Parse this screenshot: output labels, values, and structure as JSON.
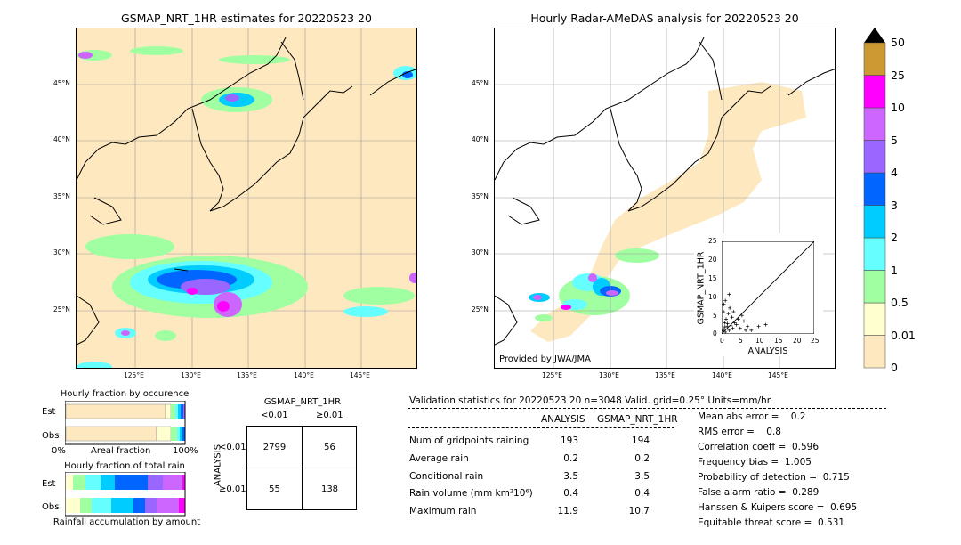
{
  "left_map": {
    "title": "GSMAP_NRT_1HR estimates for 20220523 20",
    "lat_labels": [
      "45°N",
      "40°N",
      "35°N",
      "30°N",
      "25°N"
    ],
    "lon_labels": [
      "125°E",
      "130°E",
      "135°E",
      "140°E",
      "145°E"
    ]
  },
  "right_map": {
    "title": "Hourly Radar-AMeDAS analysis for 20220523 20",
    "lat_labels": [
      "45°N",
      "40°N",
      "35°N",
      "30°N",
      "25°N"
    ],
    "lon_labels": [
      "125°E",
      "130°E",
      "135°E",
      "140°E",
      "145°E"
    ],
    "credit": "Provided by JWA/JMA"
  },
  "scatter_inset": {
    "ylabel": "GSMAP_NRT_1HR",
    "xlabel": "ANALYSIS",
    "ticks": [
      "0",
      "5",
      "10",
      "15",
      "20",
      "25"
    ]
  },
  "colorbar": {
    "labels": [
      "0",
      "0.01",
      "0.5",
      "1",
      "2",
      "3",
      "4",
      "5",
      "10",
      "25",
      "50"
    ],
    "colors": [
      "#fee8c0",
      "#ffffd0",
      "#a0ffa0",
      "#66ffff",
      "#00ccff",
      "#0066ff",
      "#9966ff",
      "#cc66ff",
      "#ff00ff",
      "#cc9933"
    ]
  },
  "occurrence_chart": {
    "title": "Hourly fraction by occurence",
    "rows": [
      "Est",
      "Obs"
    ],
    "axis_left": "0%",
    "axis_mid": "Areal fraction",
    "axis_right": "100%"
  },
  "total_rain_chart": {
    "title": "Hourly fraction of total rain",
    "rows": [
      "Est",
      "Obs"
    ],
    "footer": "Rainfall accumulation by amount"
  },
  "contingency": {
    "col_header": "GSMAP_NRT_1HR",
    "col_lt": "<0.01",
    "col_ge": "≥0.01",
    "row_header": "ANALYSIS",
    "row_lt": "<0.01",
    "row_ge": "≥0.01",
    "cells": [
      "2799",
      "56",
      "55",
      "138"
    ]
  },
  "validation": {
    "header": "Validation statistics for 20220523 20  n=3048 Valid. grid=0.25° Units=mm/hr.",
    "col_analysis": "ANALYSIS",
    "col_gsmap": "GSMAP_NRT_1HR",
    "rows": [
      {
        "label": "Num of gridpoints raining",
        "analysis": "193",
        "gsmap": "194"
      },
      {
        "label": "Average rain",
        "analysis": "0.2",
        "gsmap": "0.2"
      },
      {
        "label": "Conditional rain",
        "analysis": "3.5",
        "gsmap": "3.5"
      },
      {
        "label": "Rain volume (mm km²10⁶)",
        "analysis": "0.4",
        "gsmap": "0.4"
      },
      {
        "label": "Maximum rain",
        "analysis": "11.9",
        "gsmap": "10.7"
      }
    ],
    "scores": [
      "Mean abs error =    0.2",
      "RMS error =    0.8",
      "Correlation coeff =  0.596",
      "Frequency bias =  1.005",
      "Probability of detection =  0.715",
      "False alarm ratio =  0.289",
      "Hanssen & Kuipers score =  0.695",
      "Equitable threat score =  0.531"
    ]
  },
  "chart_data": {
    "type": "scatter",
    "xlabel": "ANALYSIS",
    "ylabel": "GSMAP_NRT_1HR",
    "xlim": [
      0,
      25
    ],
    "ylim": [
      0,
      25
    ],
    "points": [
      [
        0.5,
        1.2
      ],
      [
        1,
        0.5
      ],
      [
        1.5,
        2
      ],
      [
        2,
        1
      ],
      [
        0.8,
        3
      ],
      [
        2.5,
        2.2
      ],
      [
        3,
        1.5
      ],
      [
        1.2,
        4
      ],
      [
        0.5,
        6
      ],
      [
        1.8,
        5.5
      ],
      [
        2.2,
        7
      ],
      [
        3.5,
        3
      ],
      [
        4,
        2.5
      ],
      [
        5,
        1.5
      ],
      [
        6,
        3.5
      ],
      [
        7,
        2
      ],
      [
        8,
        1
      ],
      [
        11.9,
        2.5
      ],
      [
        10,
        2
      ],
      [
        1,
        9
      ],
      [
        0.3,
        0.8
      ],
      [
        2.8,
        4.5
      ],
      [
        1.6,
        2.8
      ],
      [
        0.9,
        1.9
      ],
      [
        4.5,
        4
      ],
      [
        3.2,
        6
      ],
      [
        0.6,
        8
      ],
      [
        2,
        10.7
      ],
      [
        5.5,
        5
      ],
      [
        6.5,
        1
      ]
    ]
  }
}
